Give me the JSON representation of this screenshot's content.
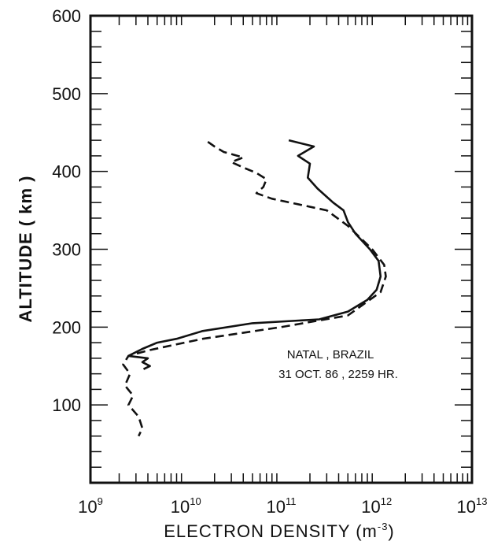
{
  "chart_data": {
    "type": "line",
    "xlabel": "ELECTRON DENSITY (m",
    "xlabel_exp": "-3",
    "xlabel_close": ")",
    "ylabel": "ALTITUDE ( km )",
    "x_scale": "log",
    "xlim": [
      1000000000.0,
      10000000000000.0
    ],
    "ylim": [
      0,
      600
    ],
    "x_ticks": [
      {
        "value": 1000000000.0,
        "base": "10",
        "exp": "9"
      },
      {
        "value": 10000000000.0,
        "base": "10",
        "exp": "10"
      },
      {
        "value": 100000000000.0,
        "base": "10",
        "exp": "11"
      },
      {
        "value": 1000000000000.0,
        "base": "10",
        "exp": "12"
      },
      {
        "value": 10000000000000.0,
        "base": "10",
        "exp": "13"
      }
    ],
    "y_ticks": [
      {
        "value": 100,
        "label": "100"
      },
      {
        "value": 200,
        "label": "200"
      },
      {
        "value": 300,
        "label": "300"
      },
      {
        "value": 400,
        "label": "400"
      },
      {
        "value": 500,
        "label": "500"
      },
      {
        "value": 600,
        "label": "600"
      }
    ],
    "annotation_lines": [
      "NATAL , BRAZIL",
      "31 OCT. 86 , 2259 HR."
    ],
    "grid": false,
    "series": [
      {
        "style": "solid",
        "points": [
          [
            120000000000.0,
            440
          ],
          [
            220000000000.0,
            432
          ],
          [
            150000000000.0,
            420
          ],
          [
            200000000000.0,
            410
          ],
          [
            190000000000.0,
            392
          ],
          [
            240000000000.0,
            378
          ],
          [
            350000000000.0,
            360
          ],
          [
            450000000000.0,
            350
          ],
          [
            500000000000.0,
            335
          ],
          [
            600000000000.0,
            320
          ],
          [
            850000000000.0,
            300
          ],
          [
            1050000000000.0,
            285
          ],
          [
            1100000000000.0,
            265
          ],
          [
            1000000000000.0,
            248
          ],
          [
            800000000000.0,
            235
          ],
          [
            500000000000.0,
            220
          ],
          [
            250000000000.0,
            210
          ],
          [
            50000000000.0,
            205
          ],
          [
            15000000000.0,
            195
          ],
          [
            8000000000.0,
            185
          ],
          [
            5000000000.0,
            180
          ],
          [
            3500000000.0,
            172
          ],
          [
            2800000000.0,
            166
          ],
          [
            2500000000.0,
            163
          ],
          [
            4000000000.0,
            160
          ],
          [
            3500000000.0,
            155
          ],
          [
            4200000000.0,
            150
          ],
          [
            3600000000.0,
            146
          ]
        ]
      },
      {
        "style": "dashed",
        "points": [
          [
            17000000000.0,
            438
          ],
          [
            20000000000.0,
            432
          ],
          [
            25000000000.0,
            425
          ],
          [
            40000000000.0,
            418
          ],
          [
            30000000000.0,
            412
          ],
          [
            40000000000.0,
            405
          ],
          [
            55000000000.0,
            398
          ],
          [
            70000000000.0,
            390
          ],
          [
            65000000000.0,
            380
          ],
          [
            55000000000.0,
            372
          ],
          [
            80000000000.0,
            365
          ],
          [
            300000000000.0,
            350
          ],
          [
            500000000000.0,
            330
          ],
          [
            900000000000.0,
            300
          ],
          [
            1200000000000.0,
            280
          ],
          [
            1250000000000.0,
            265
          ],
          [
            1100000000000.0,
            245
          ],
          [
            500000000000.0,
            215
          ],
          [
            100000000000.0,
            200
          ],
          [
            15000000000.0,
            185
          ],
          [
            4000000000.0,
            170
          ],
          [
            2500000000.0,
            163
          ],
          [
            2200000000.0,
            152
          ],
          [
            2600000000.0,
            140
          ],
          [
            2300000000.0,
            125
          ],
          [
            2800000000.0,
            112
          ],
          [
            2500000000.0,
            100
          ],
          [
            3200000000.0,
            85
          ],
          [
            3500000000.0,
            70
          ],
          [
            3200000000.0,
            60
          ]
        ]
      }
    ]
  }
}
